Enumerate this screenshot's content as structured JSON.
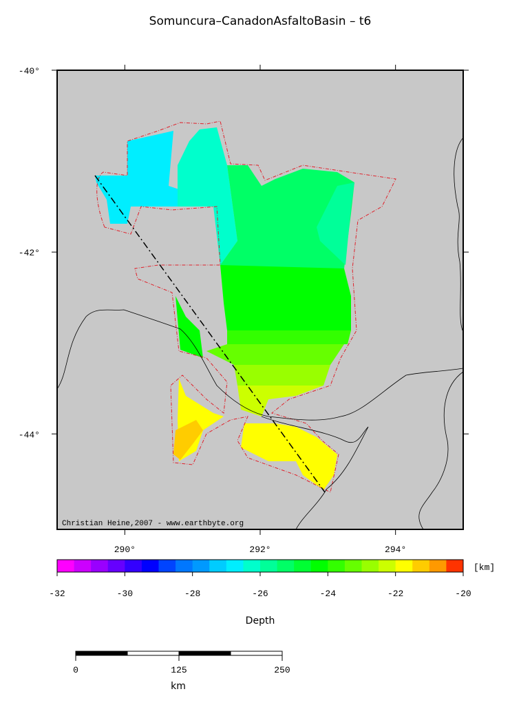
{
  "title": "Somuncura–CanadonAsfaltoBasin – t6",
  "map": {
    "lon_lim": [
      289,
      295
    ],
    "lat_lim": [
      -40,
      -45.05
    ],
    "lon_ticks": [
      {
        "value": 290,
        "label": "290°"
      },
      {
        "value": 292,
        "label": "292°"
      },
      {
        "value": 294,
        "label": "294°"
      }
    ],
    "lat_ticks": [
      {
        "value": -40,
        "label": "-40°"
      },
      {
        "value": -42,
        "label": "-42°"
      },
      {
        "value": -44,
        "label": "-44°"
      }
    ],
    "credit": "Christian Heine,2007 - www.earthbyte.org",
    "regions": [
      {
        "depth": -27
      },
      {
        "depth": -26.5
      },
      {
        "depth": -25.5
      },
      {
        "depth": -26
      },
      {
        "depth": -24.5
      },
      {
        "depth": -24.5
      },
      {
        "depth": -24
      },
      {
        "depth": -23.5
      },
      {
        "depth": -23
      },
      {
        "depth": -22.5
      },
      {
        "depth": -22
      },
      {
        "depth": -22
      },
      {
        "depth": -21.5
      }
    ]
  },
  "colorbar": {
    "range": [
      -32,
      -20
    ],
    "ticks": [
      -32,
      -30,
      -28,
      -26,
      -24,
      -22,
      -20
    ],
    "unit": "[km]",
    "label": "Depth",
    "colors": [
      "#ff00ff",
      "#cc00ff",
      "#9900ff",
      "#6600ff",
      "#3300ff",
      "#0000ff",
      "#0044ff",
      "#0077ff",
      "#0099ff",
      "#00ccff",
      "#00eeff",
      "#00ffcc",
      "#00ff99",
      "#00ff66",
      "#00ff33",
      "#00ff00",
      "#33ff00",
      "#66ff00",
      "#99ff00",
      "#ccff00",
      "#ffff00",
      "#ffcc00",
      "#ff9900",
      "#ff3300"
    ]
  },
  "scale_bar": {
    "ticks": [
      0,
      125,
      250
    ],
    "unit": "km"
  }
}
